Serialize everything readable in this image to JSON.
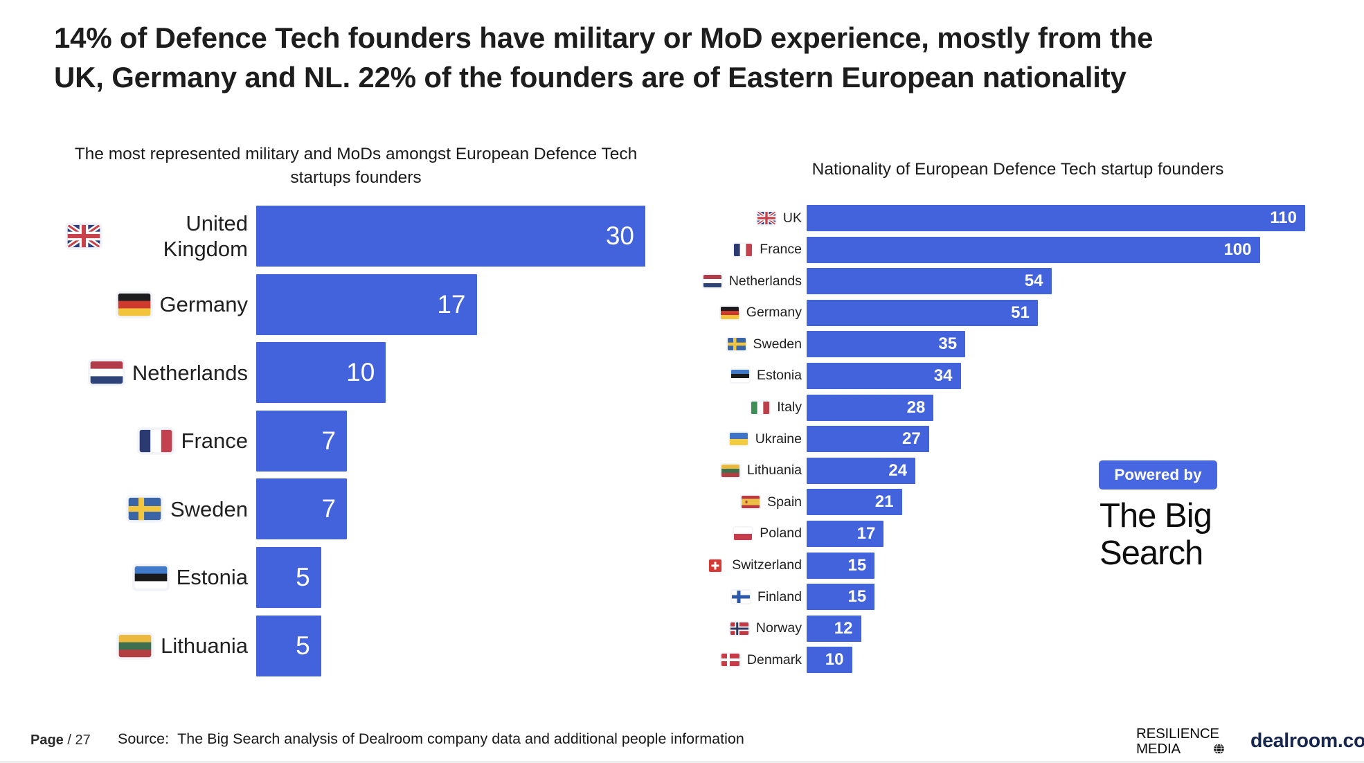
{
  "slide": {
    "title_lines": [
      "14% of Defence Tech founders have military or MoD experience, mostly from the",
      "UK, Germany and NL. 22% of the founders are of Eastern European nationality"
    ]
  },
  "chart_data": [
    {
      "type": "bar",
      "orientation": "horizontal",
      "title": "The most represented military and MoDs amongst European Defence Tech startups founders",
      "title_lines": [
        "The most represented military and MoDs amongst European Defence Tech",
        "startups founders"
      ],
      "categories": [
        "United Kingdom",
        "Germany",
        "Netherlands",
        "France",
        "Sweden",
        "Estonia",
        "Lithuania"
      ],
      "values": [
        30,
        17,
        10,
        7,
        7,
        5,
        5
      ],
      "flags": [
        "uk",
        "germany",
        "netherlands",
        "france",
        "sweden",
        "estonia",
        "lithuania"
      ],
      "xlim": [
        0,
        30
      ],
      "bar_color": "#4263dc",
      "value_label_position": "inside-right",
      "value_label_color": "#ffffff",
      "grid": false,
      "legend": "none"
    },
    {
      "type": "bar",
      "orientation": "horizontal",
      "title": "Nationality of European Defence Tech startup founders",
      "title_lines": [
        "Nationality of European Defence Tech startup founders"
      ],
      "categories": [
        "UK",
        "France",
        "Netherlands",
        "Germany",
        "Sweden",
        "Estonia",
        "Italy",
        "Ukraine",
        "Lithuania",
        "Spain",
        "Poland",
        "Switzerland",
        "Finland",
        "Norway",
        "Denmark"
      ],
      "values": [
        110,
        100,
        54,
        51,
        35,
        34,
        28,
        27,
        24,
        21,
        17,
        15,
        15,
        12,
        10
      ],
      "flags": [
        "uk",
        "france",
        "netherlands",
        "germany",
        "sweden",
        "estonia",
        "italy",
        "ukraine",
        "lithuania",
        "spain",
        "poland",
        "switzerland",
        "finland",
        "norway",
        "denmark"
      ],
      "xlim": [
        0,
        110
      ],
      "bar_color": "#4263dc",
      "value_label_position": "inside-right",
      "value_label_color": "#ffffff",
      "grid": false,
      "legend": "none"
    }
  ],
  "powered_by": {
    "button_label": "Powered by",
    "logo_line1": "The Big",
    "logo_line2": "Search",
    "button_color": "#4767e2"
  },
  "footer": {
    "page_label": "Page",
    "page_number": "/ 27",
    "source_prefix": "Source:",
    "source_text": "The Big Search analysis of Dealroom company data and additional people information",
    "brand_line1": "RESILIENCE",
    "brand_line2": "MEDIA",
    "globe_icon": "globe-icon",
    "dealroom_label": "dealroom.co"
  },
  "colors": {
    "bar_blue": "#4263dc",
    "powered_button_blue": "#4767e2",
    "dealroom_navy": "#17264e",
    "text_dark": "#1d1d1d"
  }
}
